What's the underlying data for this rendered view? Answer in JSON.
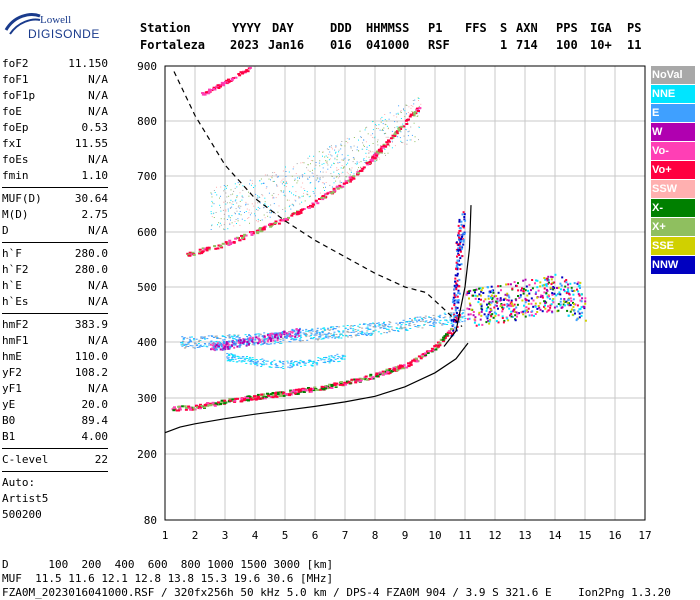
{
  "logo": {
    "brand": "Lowell",
    "product": "DIGISONDE"
  },
  "header": {
    "row1": [
      "Station",
      "YYYY",
      "DAY",
      "DDD",
      "HHMMSS",
      "P1",
      "FFS",
      "S",
      "AXN",
      "PPS",
      "IGA",
      "PS"
    ],
    "row2": [
      "Fortaleza",
      "2023",
      "Jan16",
      "016",
      "041000",
      "RSF",
      "1",
      "714",
      "100",
      "10+",
      "11"
    ]
  },
  "params": [
    {
      "k": "foF2",
      "v": "11.150"
    },
    {
      "k": "foF1",
      "v": "N/A"
    },
    {
      "k": "foF1p",
      "v": "N/A"
    },
    {
      "k": "foE",
      "v": "N/A"
    },
    {
      "k": "foEp",
      "v": "0.53"
    },
    {
      "k": "fxI",
      "v": "11.55"
    },
    {
      "k": "foEs",
      "v": "N/A"
    },
    {
      "k": "fmin",
      "v": "1.10"
    },
    {
      "sep": true
    },
    {
      "k": "MUF(D)",
      "v": "30.64"
    },
    {
      "k": "M(D)",
      "v": "2.75"
    },
    {
      "k": "D",
      "v": "N/A"
    },
    {
      "sep": true
    },
    {
      "k": "h`F",
      "v": "280.0"
    },
    {
      "k": "h`F2",
      "v": "280.0"
    },
    {
      "k": "h`E",
      "v": "N/A"
    },
    {
      "k": "h`Es",
      "v": "N/A"
    },
    {
      "sep": true
    },
    {
      "k": "hmF2",
      "v": "383.9"
    },
    {
      "k": "hmF1",
      "v": "N/A"
    },
    {
      "k": "hmE",
      "v": "110.0"
    },
    {
      "k": "yF2",
      "v": "108.2"
    },
    {
      "k": "yF1",
      "v": "N/A"
    },
    {
      "k": "yE",
      "v": "20.0"
    },
    {
      "k": "B0",
      "v": "89.4"
    },
    {
      "k": "B1",
      "v": "4.00"
    },
    {
      "sep": true
    },
    {
      "k": "C-level",
      "v": "22"
    },
    {
      "sep": true
    },
    {
      "text": "Auto:"
    },
    {
      "text": "Artist5"
    },
    {
      "text": "500200"
    }
  ],
  "legend": [
    {
      "label": "NoVal",
      "color": "#a8a8a8"
    },
    {
      "label": "NNE",
      "color": "#00e5ff"
    },
    {
      "label": "E",
      "color": "#3fa0ff"
    },
    {
      "label": "W",
      "color": "#b000b0"
    },
    {
      "label": "Vo-",
      "color": "#ff3fb5"
    },
    {
      "label": "Vo+",
      "color": "#ff0040"
    },
    {
      "label": "SSW",
      "color": "#ffb0b0"
    },
    {
      "label": "X-",
      "color": "#008000"
    },
    {
      "label": "X+",
      "color": "#8fbf5f"
    },
    {
      "label": "SSE",
      "color": "#d0d000"
    },
    {
      "label": "NNW",
      "color": "#0000c0"
    }
  ],
  "bottom": {
    "d_line": "D      100  200  400  600  800 1000 1500 3000 [km]",
    "muf_line": "MUF  11.5 11.6 12.1 12.8 13.8 15.3 19.6 30.6 [MHz]",
    "file_line": "FZA0M_2023016041000.RSF / 320fx256h 50 kHz 5.0 km / DPS-4 FZA0M 904 / 3.9 S 321.6 E    Ion2Png 1.3.20"
  },
  "chart_data": {
    "type": "scatter",
    "xlim": [
      1,
      17
    ],
    "ylim": [
      80,
      900
    ],
    "x_ticks": [
      "1",
      "2",
      "3",
      "4",
      "5",
      "6",
      "7",
      "8",
      "9",
      "10",
      "11",
      "12",
      "13",
      "14",
      "15",
      "16",
      "17"
    ],
    "y_ticks": [
      "80",
      "200",
      "300",
      "400",
      "500",
      "600",
      "700",
      "800",
      "900"
    ],
    "grid": true,
    "traces": {
      "o_low": [
        [
          1.2,
          282
        ],
        [
          2,
          285
        ],
        [
          3,
          295
        ],
        [
          4,
          303
        ],
        [
          5,
          310
        ],
        [
          6,
          318
        ],
        [
          7,
          328
        ],
        [
          8,
          342
        ],
        [
          9,
          360
        ],
        [
          9.5,
          374
        ],
        [
          10,
          393
        ],
        [
          10.5,
          423
        ],
        [
          10.8,
          452
        ]
      ],
      "o_high": [
        [
          1.7,
          560
        ],
        [
          3,
          580
        ],
        [
          4,
          602
        ],
        [
          5,
          625
        ],
        [
          6,
          655
        ],
        [
          7,
          690
        ],
        [
          7.5,
          712
        ],
        [
          8,
          740
        ],
        [
          8.5,
          770
        ],
        [
          9,
          800
        ],
        [
          9.5,
          830
        ]
      ],
      "o_top": [
        [
          2.2,
          850
        ],
        [
          3,
          872
        ],
        [
          3.5,
          888
        ],
        [
          3.8,
          898
        ]
      ],
      "e_band_low": [
        [
          1.5,
          400
        ],
        [
          4,
          405
        ],
        [
          6,
          415
        ],
        [
          8,
          425
        ],
        [
          10,
          440
        ],
        [
          11,
          450
        ]
      ],
      "e_band_mid": [
        [
          3,
          375
        ],
        [
          4,
          365
        ],
        [
          5,
          360
        ],
        [
          6,
          365
        ],
        [
          7,
          375
        ]
      ],
      "w_patch": [
        [
          2.5,
          392
        ],
        [
          3.5,
          400
        ],
        [
          4.5,
          410
        ],
        [
          5.5,
          420
        ]
      ],
      "spread_mid": [
        [
          2.5,
          640
        ],
        [
          4,
          655
        ],
        [
          5.5,
          690
        ],
        [
          7,
          730
        ],
        [
          8.5,
          780
        ],
        [
          9.5,
          810
        ]
      ],
      "spread_f_cluster": [
        [
          11,
          460
        ],
        [
          12,
          470
        ],
        [
          13,
          480
        ],
        [
          14,
          490
        ],
        [
          15,
          470
        ]
      ],
      "vertical_blue": [
        [
          10.6,
          420
        ],
        [
          10.7,
          500
        ],
        [
          10.8,
          580
        ],
        [
          10.9,
          620
        ]
      ],
      "profile_solid_low": [
        [
          1,
          238
        ],
        [
          1.5,
          248
        ],
        [
          2,
          254
        ],
        [
          3,
          263
        ],
        [
          4,
          271
        ],
        [
          5,
          278
        ],
        [
          6,
          285
        ],
        [
          7,
          293
        ],
        [
          8,
          303
        ],
        [
          9,
          320
        ],
        [
          10,
          345
        ],
        [
          10.7,
          370
        ],
        [
          11.1,
          398
        ]
      ],
      "profile_solid_high": [
        [
          10.3,
          392
        ],
        [
          10.7,
          420
        ],
        [
          11,
          500
        ],
        [
          11.15,
          570
        ],
        [
          11.2,
          648
        ]
      ],
      "muf_dashed": [
        [
          1.3,
          890
        ],
        [
          2,
          810
        ],
        [
          3,
          720
        ],
        [
          4,
          660
        ],
        [
          5,
          620
        ],
        [
          6,
          585
        ],
        [
          7,
          555
        ],
        [
          8,
          525
        ],
        [
          9,
          500
        ],
        [
          9.7,
          490
        ],
        [
          10.3,
          460
        ],
        [
          10.9,
          428
        ]
      ]
    }
  }
}
